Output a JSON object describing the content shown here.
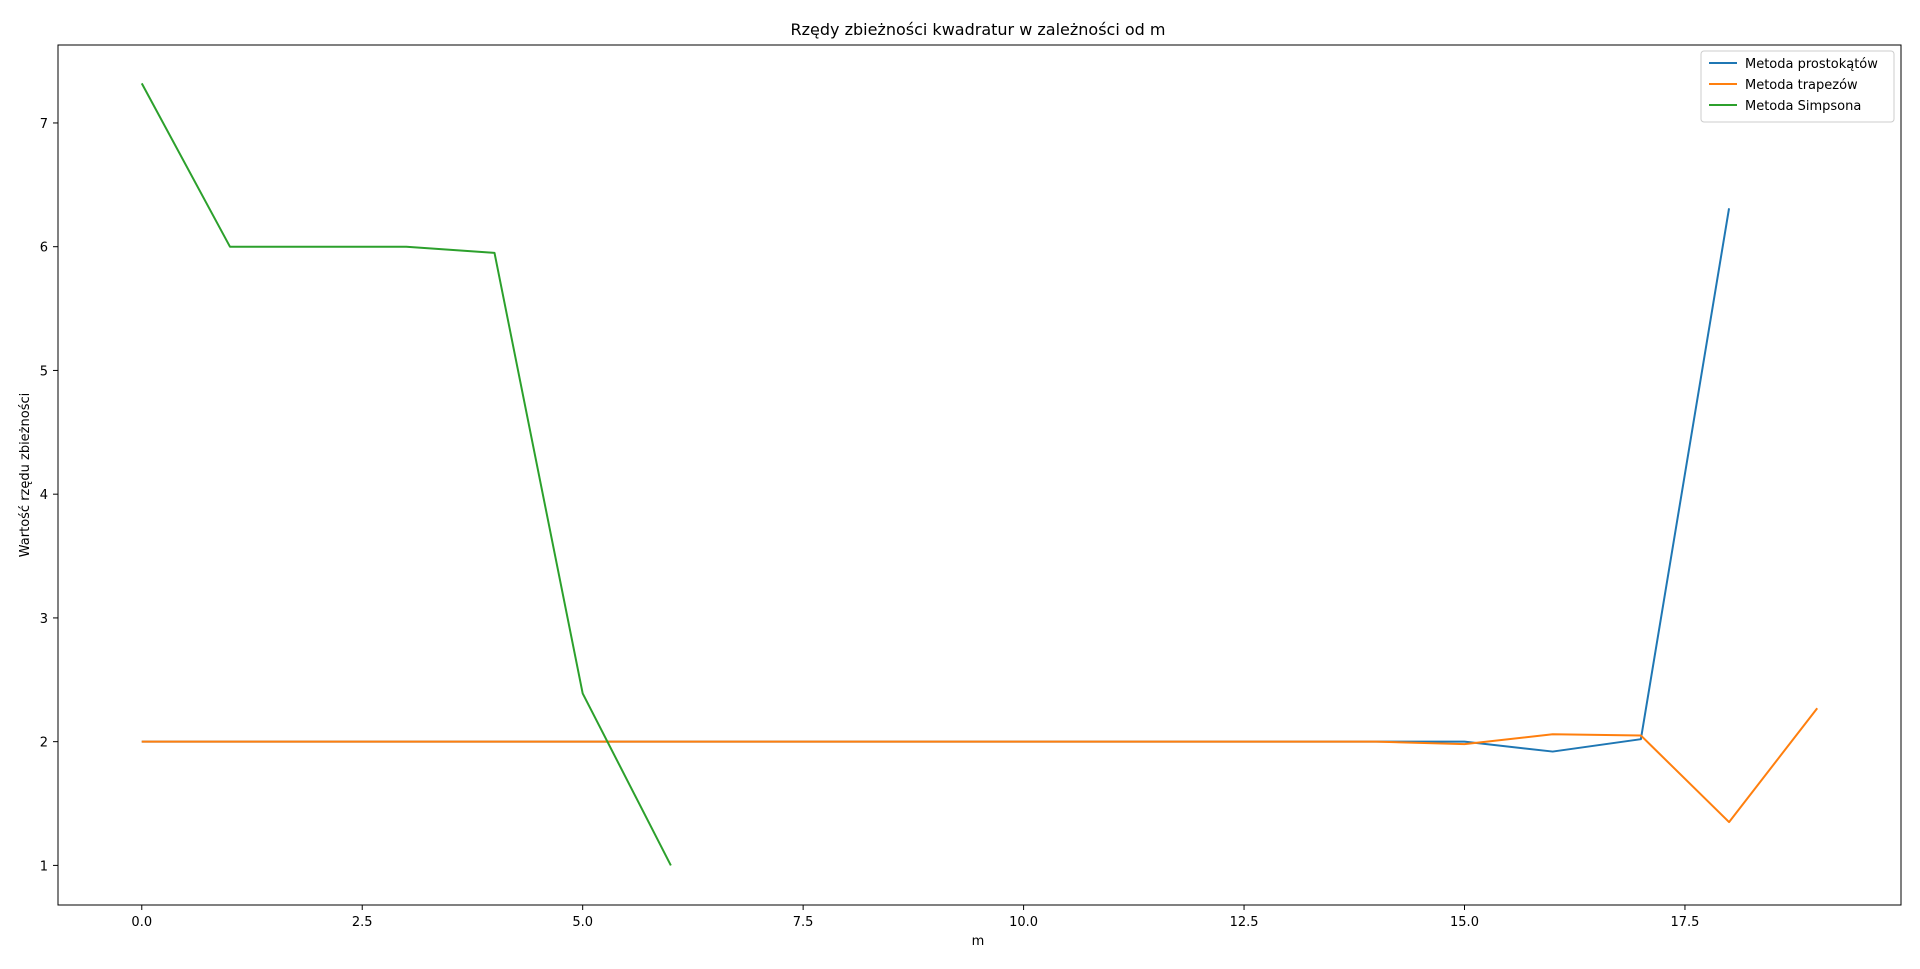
{
  "chart_data": {
    "type": "line",
    "title": "Rzędy zbieżności kwadratur w zależności od m",
    "xlabel": "m",
    "ylabel": "Wartość rzędu zbieżności",
    "xlim": [
      -0.95,
      19.95
    ],
    "ylim": [
      0.68,
      7.63
    ],
    "xticks": [
      0.0,
      2.5,
      5.0,
      7.5,
      10.0,
      12.5,
      15.0,
      17.5
    ],
    "xtick_labels": [
      "0.0",
      "2.5",
      "5.0",
      "7.5",
      "10.0",
      "12.5",
      "15.0",
      "17.5"
    ],
    "yticks": [
      1,
      2,
      3,
      4,
      5,
      6,
      7
    ],
    "ytick_labels": [
      "1",
      "2",
      "3",
      "4",
      "5",
      "6",
      "7"
    ],
    "grid": false,
    "legend_position": "top-right",
    "series": [
      {
        "name": "Metoda prostokątów",
        "color": "#1f77b4",
        "x": [
          0,
          1,
          2,
          3,
          4,
          5,
          6,
          7,
          8,
          9,
          10,
          11,
          12,
          13,
          14,
          15,
          16,
          17,
          18
        ],
        "y": [
          2.0,
          2.0,
          2.0,
          2.0,
          2.0,
          2.0,
          2.0,
          2.0,
          2.0,
          2.0,
          2.0,
          2.0,
          2.0,
          2.0,
          2.0,
          2.0,
          1.92,
          2.02,
          6.31
        ]
      },
      {
        "name": "Metoda trapezów",
        "color": "#ff7f0e",
        "x": [
          0,
          1,
          2,
          3,
          4,
          5,
          6,
          7,
          8,
          9,
          10,
          11,
          12,
          13,
          14,
          15,
          16,
          17,
          18,
          19
        ],
        "y": [
          2.0,
          2.0,
          2.0,
          2.0,
          2.0,
          2.0,
          2.0,
          2.0,
          2.0,
          2.0,
          2.0,
          2.0,
          2.0,
          2.0,
          2.0,
          1.98,
          2.06,
          2.05,
          1.35,
          2.27
        ]
      },
      {
        "name": "Metoda Simpsona",
        "color": "#2ca02c",
        "x": [
          0,
          1,
          2,
          3,
          4,
          5,
          6
        ],
        "y": [
          7.32,
          6.0,
          6.0,
          6.0,
          5.95,
          2.39,
          1.0
        ]
      }
    ]
  }
}
